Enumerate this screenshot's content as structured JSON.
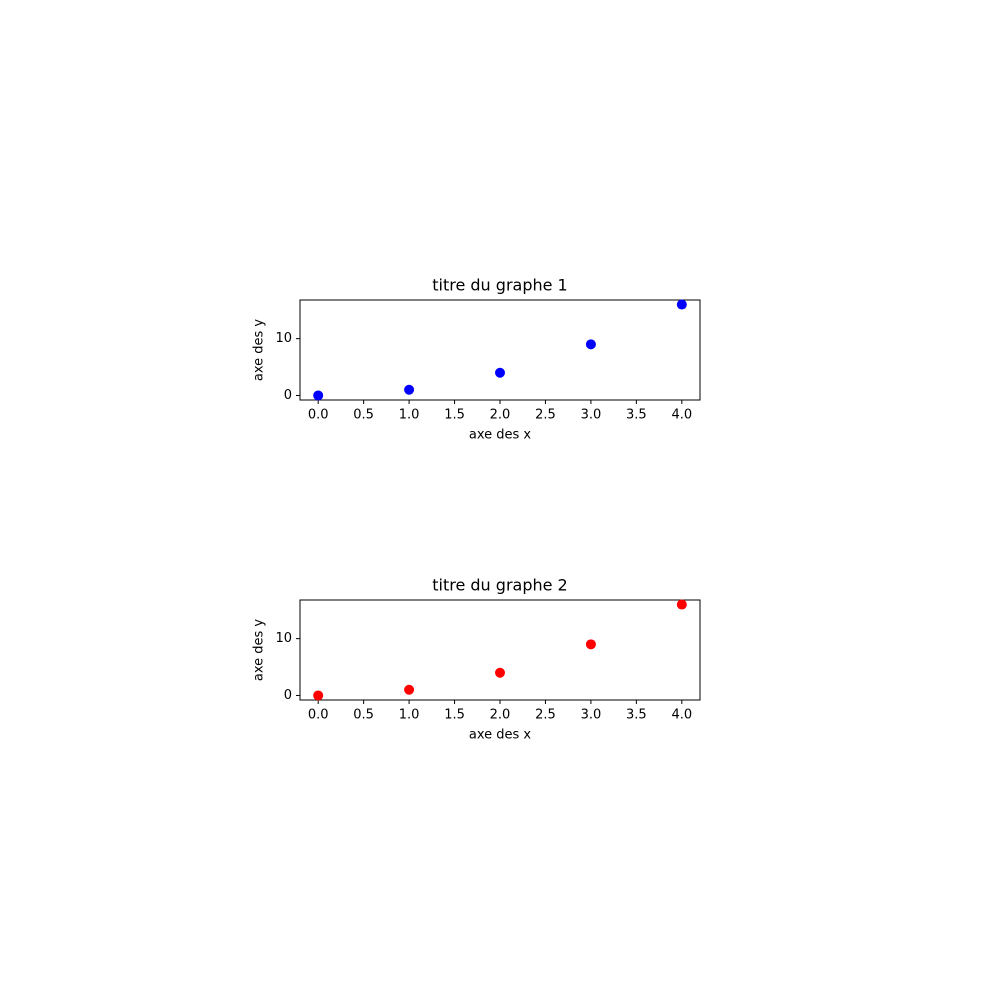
{
  "chart_data": [
    {
      "type": "scatter",
      "title": "titre du graphe 1",
      "x_label": "axe des x",
      "y_label": "axe des y",
      "x": [
        0,
        1,
        2,
        3,
        4
      ],
      "values": [
        0,
        1,
        4,
        9,
        16
      ],
      "color": "#0000ff",
      "xlim": [
        -0.2,
        4.2
      ],
      "ylim": [
        -0.8,
        16.8
      ],
      "xticks": [
        {
          "value": 0,
          "label": "0.0"
        },
        0.5,
        {
          "value": 1,
          "label": "1.0"
        },
        1.5,
        {
          "value": 2,
          "label": "2.0"
        },
        2.5,
        {
          "value": 3,
          "label": "3.0"
        },
        3.5,
        {
          "value": 4,
          "label": "4.0"
        }
      ],
      "yticks": [
        0,
        10
      ]
    },
    {
      "type": "scatter",
      "title": "titre du graphe 2",
      "x_label": "axe des x",
      "y_label": "axe des y",
      "x": [
        0,
        1,
        2,
        3,
        4
      ],
      "values": [
        0,
        1,
        4,
        9,
        16
      ],
      "color": "#ff0000",
      "xlim": [
        -0.2,
        4.2
      ],
      "ylim": [
        -0.8,
        16.8
      ],
      "xticks": [
        {
          "value": 0,
          "label": "0.0"
        },
        0.5,
        {
          "value": 1,
          "label": "1.0"
        },
        1.5,
        {
          "value": 2,
          "label": "2.0"
        },
        2.5,
        {
          "value": 3,
          "label": "3.0"
        },
        3.5,
        {
          "value": 4,
          "label": "4.0"
        }
      ],
      "yticks": [
        0,
        10
      ]
    }
  ]
}
